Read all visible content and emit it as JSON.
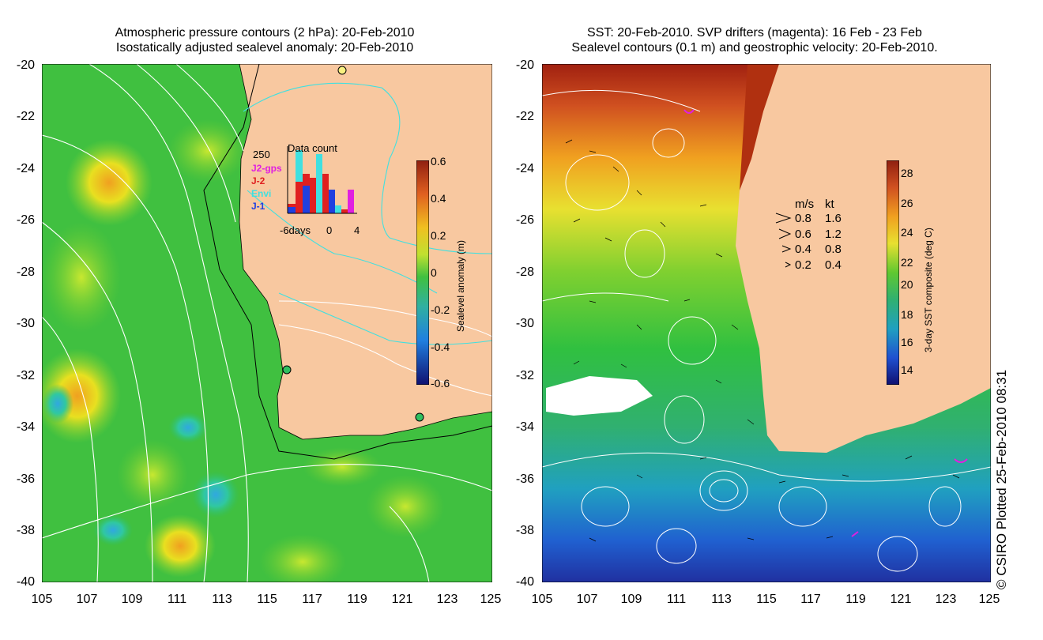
{
  "left_panel": {
    "title_line1": "Atmospheric pressure contours (2 hPa): 20-Feb-2010",
    "title_line2": "Isostatically adjusted sealevel anomaly: 20-Feb-2010",
    "y_ticks": [
      "-20",
      "-22",
      "-24",
      "-26",
      "-28",
      "-30",
      "-32",
      "-34",
      "-36",
      "-38",
      "-40"
    ],
    "x_ticks": [
      "105",
      "107",
      "109",
      "111",
      "113",
      "115",
      "117",
      "119",
      "121",
      "123",
      "125"
    ],
    "colorbar_ticks": [
      "0.6",
      "0.4",
      "0.2",
      "0",
      "-0.2",
      "-0.4",
      "-0.6"
    ],
    "colorbar_label": "Sealevel anomaly (m)",
    "inset": {
      "y_label": "250",
      "title": "Data count",
      "legend": [
        "J2-gps",
        "J-2",
        "Envi",
        "J-1"
      ],
      "x_label": "-6days",
      "x_tick_0": "0",
      "x_tick_4": "4"
    }
  },
  "right_panel": {
    "title_line1": "SST: 20-Feb-2010. SVP drifters (magenta): 16 Feb - 23 Feb",
    "title_line2": "Sealevel contours (0.1 m) and geostrophic velocity: 20-Feb-2010.",
    "y_ticks": [
      "-20",
      "-22",
      "-24",
      "-26",
      "-28",
      "-30",
      "-32",
      "-34",
      "-36",
      "-38",
      "-40"
    ],
    "x_ticks": [
      "105",
      "107",
      "109",
      "111",
      "113",
      "115",
      "117",
      "119",
      "121",
      "123",
      "125"
    ],
    "colorbar_ticks": [
      "28",
      "26",
      "24",
      "22",
      "20",
      "18",
      "16",
      "14"
    ],
    "colorbar_label": "3-day SST composite (deg C)",
    "velocity_header_ms": "m/s",
    "velocity_header_kt": "kt",
    "velocity_rows": [
      {
        "ms": "0.8",
        "kt": "1.6"
      },
      {
        "ms": "0.6",
        "kt": "1.2"
      },
      {
        "ms": "0.4",
        "kt": "0.8"
      },
      {
        "ms": "0.2",
        "kt": "0.4"
      }
    ]
  },
  "copyright": "© CSIRO Plotted 25-Feb-2010 08:31",
  "colors": {
    "land": "#f8c8a0",
    "ocean_mid": "#3cbf3c",
    "contour_white": "#ffffff",
    "contour_cyan": "#40e0e0"
  }
}
